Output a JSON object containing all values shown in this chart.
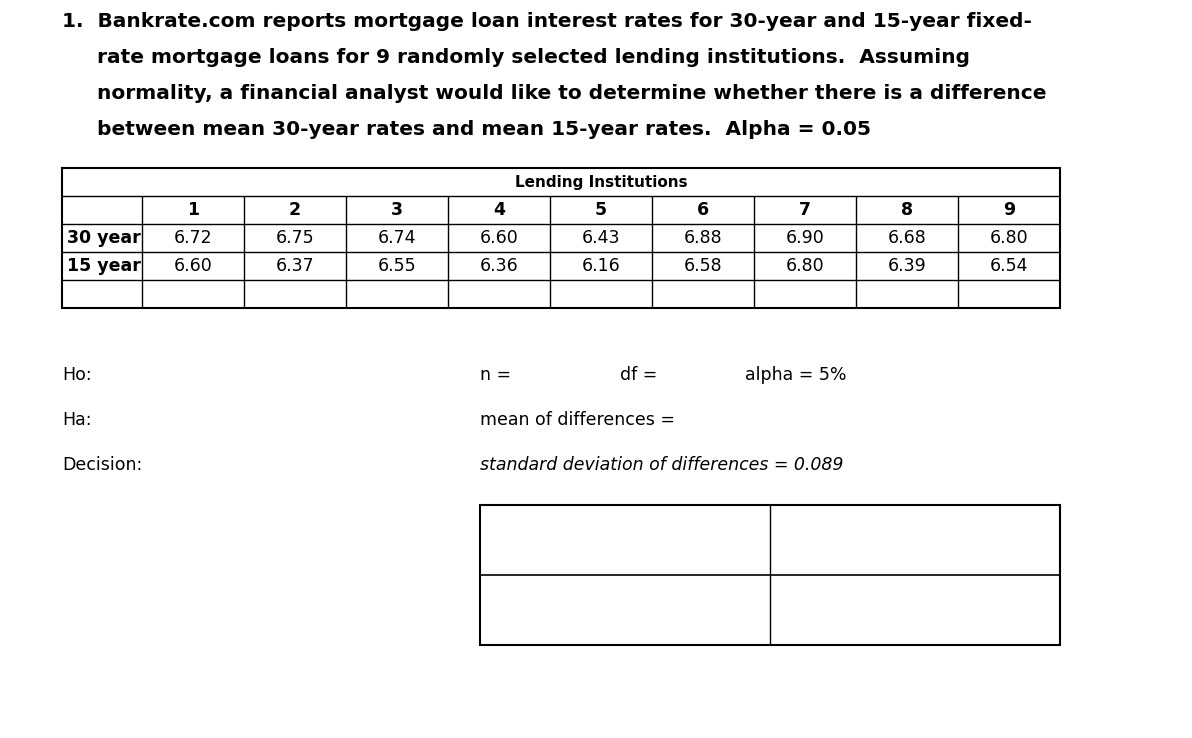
{
  "title_line1": "1.  Bankrate.com reports mortgage loan interest rates for 30-year and 15-year fixed-",
  "title_line2": "     rate mortgage loans for 9 randomly selected lending institutions.  Assuming",
  "title_line3": "     normality, a financial analyst would like to determine whether there is a difference",
  "title_line4": "     between mean 30-year rates and mean 15-year rates.  Alpha = 0.05",
  "table_header": "Lending Institutions",
  "col_headers": [
    "1",
    "2",
    "3",
    "4",
    "5",
    "6",
    "7",
    "8",
    "9"
  ],
  "row_labels": [
    "30 year",
    "15 year"
  ],
  "row1_values": [
    "6.72",
    "6.75",
    "6.74",
    "6.60",
    "6.43",
    "6.88",
    "6.90",
    "6.68",
    "6.80"
  ],
  "row2_values": [
    "6.60",
    "6.37",
    "6.55",
    "6.36",
    "6.16",
    "6.58",
    "6.80",
    "6.39",
    "6.54"
  ],
  "label_ho": "Ho:",
  "label_ha": "Ha:",
  "label_decision": "Decision:",
  "label_n": "n =",
  "label_df": "df =",
  "label_alpha": "alpha = 5%",
  "label_mean": "mean of differences =",
  "label_sd": "standard deviation of differences = 0.089",
  "bg_color": "#ffffff",
  "text_color": "#000000",
  "font_size_title": 14.5,
  "font_size_table_header": 11.0,
  "font_size_table": 12.5,
  "font_size_labels": 12.5
}
